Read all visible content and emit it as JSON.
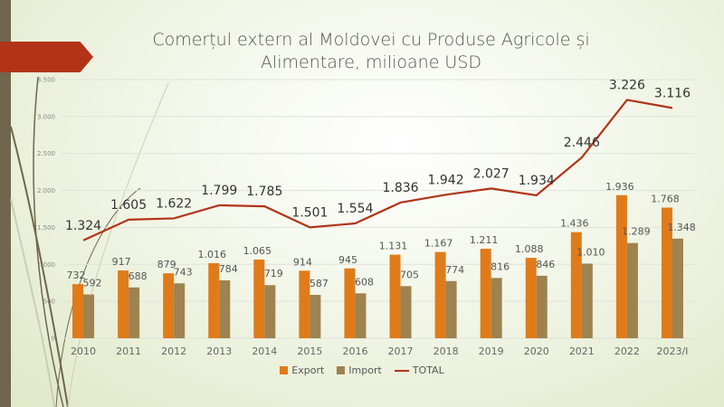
{
  "chart_data": {
    "type": "bar+line",
    "title": "Comerțul extern al Moldovei cu Produse Agricole și Alimentare, milioane USD",
    "title_lines": [
      "Comerțul extern al Moldovei cu Produse Agricole și",
      "Alimentare, milioane USD"
    ],
    "categories": [
      "2010",
      "2011",
      "2012",
      "2013",
      "2014",
      "2015",
      "2016",
      "2017",
      "2018",
      "2019",
      "2020",
      "2021",
      "2022",
      "2023/I"
    ],
    "series": [
      {
        "name": "Export",
        "type": "bar",
        "color": "#e07b1a",
        "values": [
          732,
          917,
          879,
          1016,
          1065,
          914,
          945,
          1131,
          1167,
          1211,
          1088,
          1436,
          1936,
          1768
        ],
        "labels": [
          "732",
          "917",
          "879",
          "1.016",
          "1.065",
          "914",
          "945",
          "1.131",
          "1.167",
          "1.211",
          "1.088",
          "1.436",
          "1.936",
          "1.768"
        ]
      },
      {
        "name": "Import",
        "type": "bar",
        "color": "#9e8250",
        "values": [
          592,
          688,
          743,
          784,
          719,
          587,
          608,
          705,
          774,
          816,
          846,
          1010,
          1289,
          1348
        ],
        "labels": [
          "592",
          "688",
          "743",
          "784",
          "719",
          "587",
          "608",
          "705",
          "774",
          "816",
          "846",
          "1.010",
          "1.289",
          "1.348"
        ]
      },
      {
        "name": "TOTAL",
        "type": "line",
        "color": "#b23418",
        "values": [
          1324,
          1605,
          1622,
          1799,
          1785,
          1501,
          1554,
          1836,
          1942,
          2027,
          1934,
          2446,
          3226,
          3116
        ],
        "labels": [
          "1.324",
          "1.605",
          "1.622",
          "1.799",
          "1.785",
          "1.501",
          "1.554",
          "1.836",
          "1.942",
          "2.027",
          "1.934",
          "2.446",
          "3.226",
          "3.116"
        ]
      }
    ],
    "ylim": [
      0,
      3500
    ],
    "yticks": [
      0,
      500,
      1000,
      1500,
      2000,
      2500,
      3000,
      3500
    ],
    "ytick_labels": [
      "0",
      "500",
      "1.000",
      "1.500",
      "2.000",
      "2.500",
      "3.000",
      "3.500"
    ],
    "grid": true,
    "legend": "bottom"
  }
}
